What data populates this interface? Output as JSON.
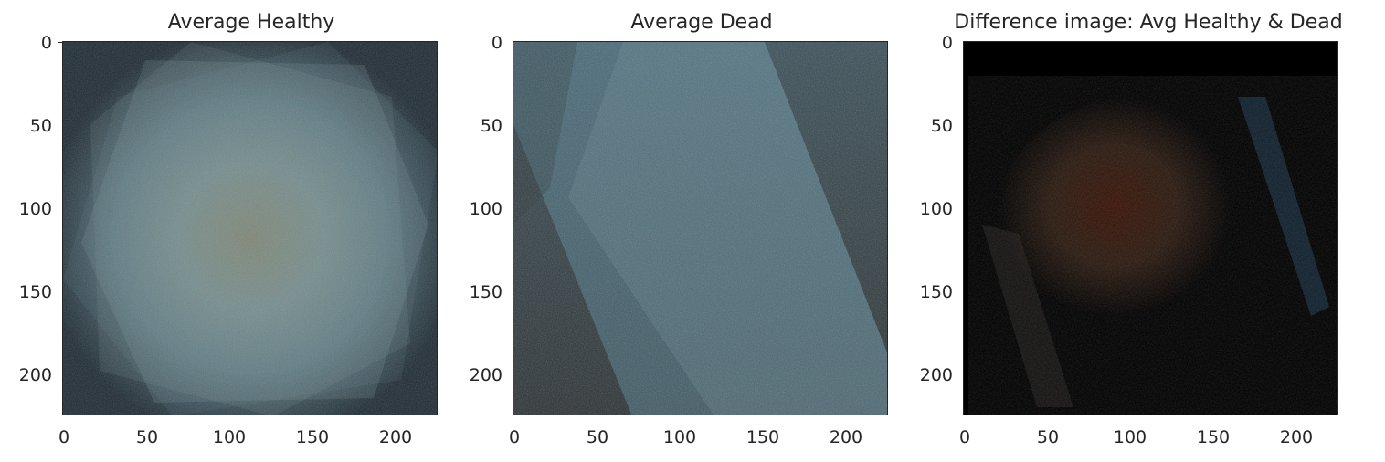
{
  "figure": {
    "panels": [
      {
        "id": "healthy",
        "title": "Average Healthy",
        "kind": "image",
        "description_colors": {
          "background": "#1f2d38",
          "accent": "#6a8a94"
        },
        "x_ticks": [
          "0",
          "50",
          "100",
          "150",
          "200"
        ],
        "y_ticks": [
          "0",
          "50",
          "100",
          "150",
          "200"
        ]
      },
      {
        "id": "dead",
        "title": "Average Dead",
        "kind": "image",
        "description_colors": {
          "background": "#2e3638",
          "accent": "#5f8ea2"
        },
        "x_ticks": [
          "0",
          "50",
          "100",
          "150",
          "200"
        ],
        "y_ticks": [
          "0",
          "50",
          "100",
          "150",
          "200"
        ]
      },
      {
        "id": "difference",
        "title": "Difference image: Avg Healthy & Dead",
        "kind": "image",
        "description_colors": {
          "background": "#000000",
          "accent": "#4a1a0a"
        },
        "x_ticks": [
          "0",
          "50",
          "100",
          "150",
          "200"
        ],
        "y_ticks": [
          "0",
          "50",
          "100",
          "150",
          "200"
        ]
      }
    ]
  },
  "chart_data": [
    {
      "type": "heatmap",
      "title": "Average Healthy",
      "xlim": [
        0,
        225
      ],
      "ylim": [
        225,
        0
      ],
      "xticks": [
        0,
        50,
        100,
        150,
        200
      ],
      "yticks": [
        0,
        50,
        100,
        150,
        200
      ],
      "grid": false
    },
    {
      "type": "heatmap",
      "title": "Average Dead",
      "xlim": [
        0,
        225
      ],
      "ylim": [
        225,
        0
      ],
      "xticks": [
        0,
        50,
        100,
        150,
        200
      ],
      "yticks": [
        0,
        50,
        100,
        150,
        200
      ],
      "grid": false
    },
    {
      "type": "heatmap",
      "title": "Difference image: Avg Healthy & Dead",
      "xlim": [
        0,
        225
      ],
      "ylim": [
        225,
        0
      ],
      "xticks": [
        0,
        50,
        100,
        150,
        200
      ],
      "yticks": [
        0,
        50,
        100,
        150,
        200
      ],
      "grid": false
    }
  ]
}
